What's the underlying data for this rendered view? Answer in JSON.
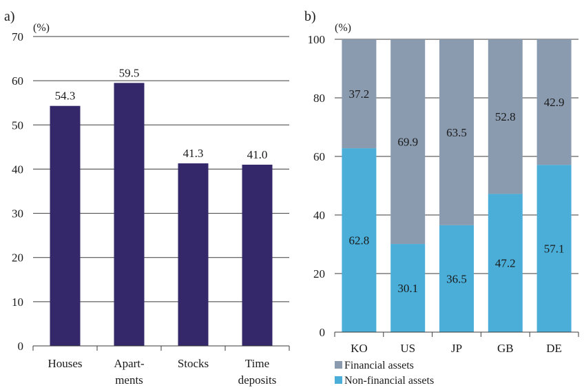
{
  "chart_data": [
    {
      "type": "bar",
      "panel_label": "a)",
      "unit": "(%)",
      "categories": [
        [
          "Houses"
        ],
        [
          "Apart-",
          "ments"
        ],
        [
          "Stocks"
        ],
        [
          "Time",
          "deposits"
        ]
      ],
      "values": [
        54.3,
        59.5,
        41.3,
        41.0
      ],
      "value_labels": [
        "54.3",
        "59.5",
        "41.3",
        "41.0"
      ],
      "ylim": [
        0,
        70
      ],
      "yticks": [
        0,
        10,
        20,
        30,
        40,
        50,
        60,
        70
      ],
      "grid": true,
      "colors": {
        "bar": "#34286b"
      }
    },
    {
      "type": "bar",
      "stacked": true,
      "panel_label": "b)",
      "unit": "(%)",
      "categories": [
        "KO",
        "US",
        "JP",
        "GB",
        "DE"
      ],
      "series": [
        {
          "name": "Non-financial assets",
          "values": [
            62.8,
            30.1,
            36.5,
            47.2,
            57.1
          ],
          "labels": [
            "62.8",
            "30.1",
            "36.5",
            "47.2",
            "57.1"
          ],
          "color": "#4aaed8"
        },
        {
          "name": "Financial assets",
          "values": [
            37.2,
            69.9,
            63.5,
            52.8,
            42.9
          ],
          "labels": [
            "37.2",
            "69.9",
            "63.5",
            "52.8",
            "42.9"
          ],
          "color": "#8a9bb0"
        }
      ],
      "ylim": [
        0,
        100
      ],
      "yticks": [
        0,
        20,
        40,
        60,
        80,
        100
      ],
      "grid": true,
      "legend": {
        "placement": "bottom",
        "order": [
          "Financial assets",
          "Non-financial assets"
        ]
      }
    }
  ]
}
